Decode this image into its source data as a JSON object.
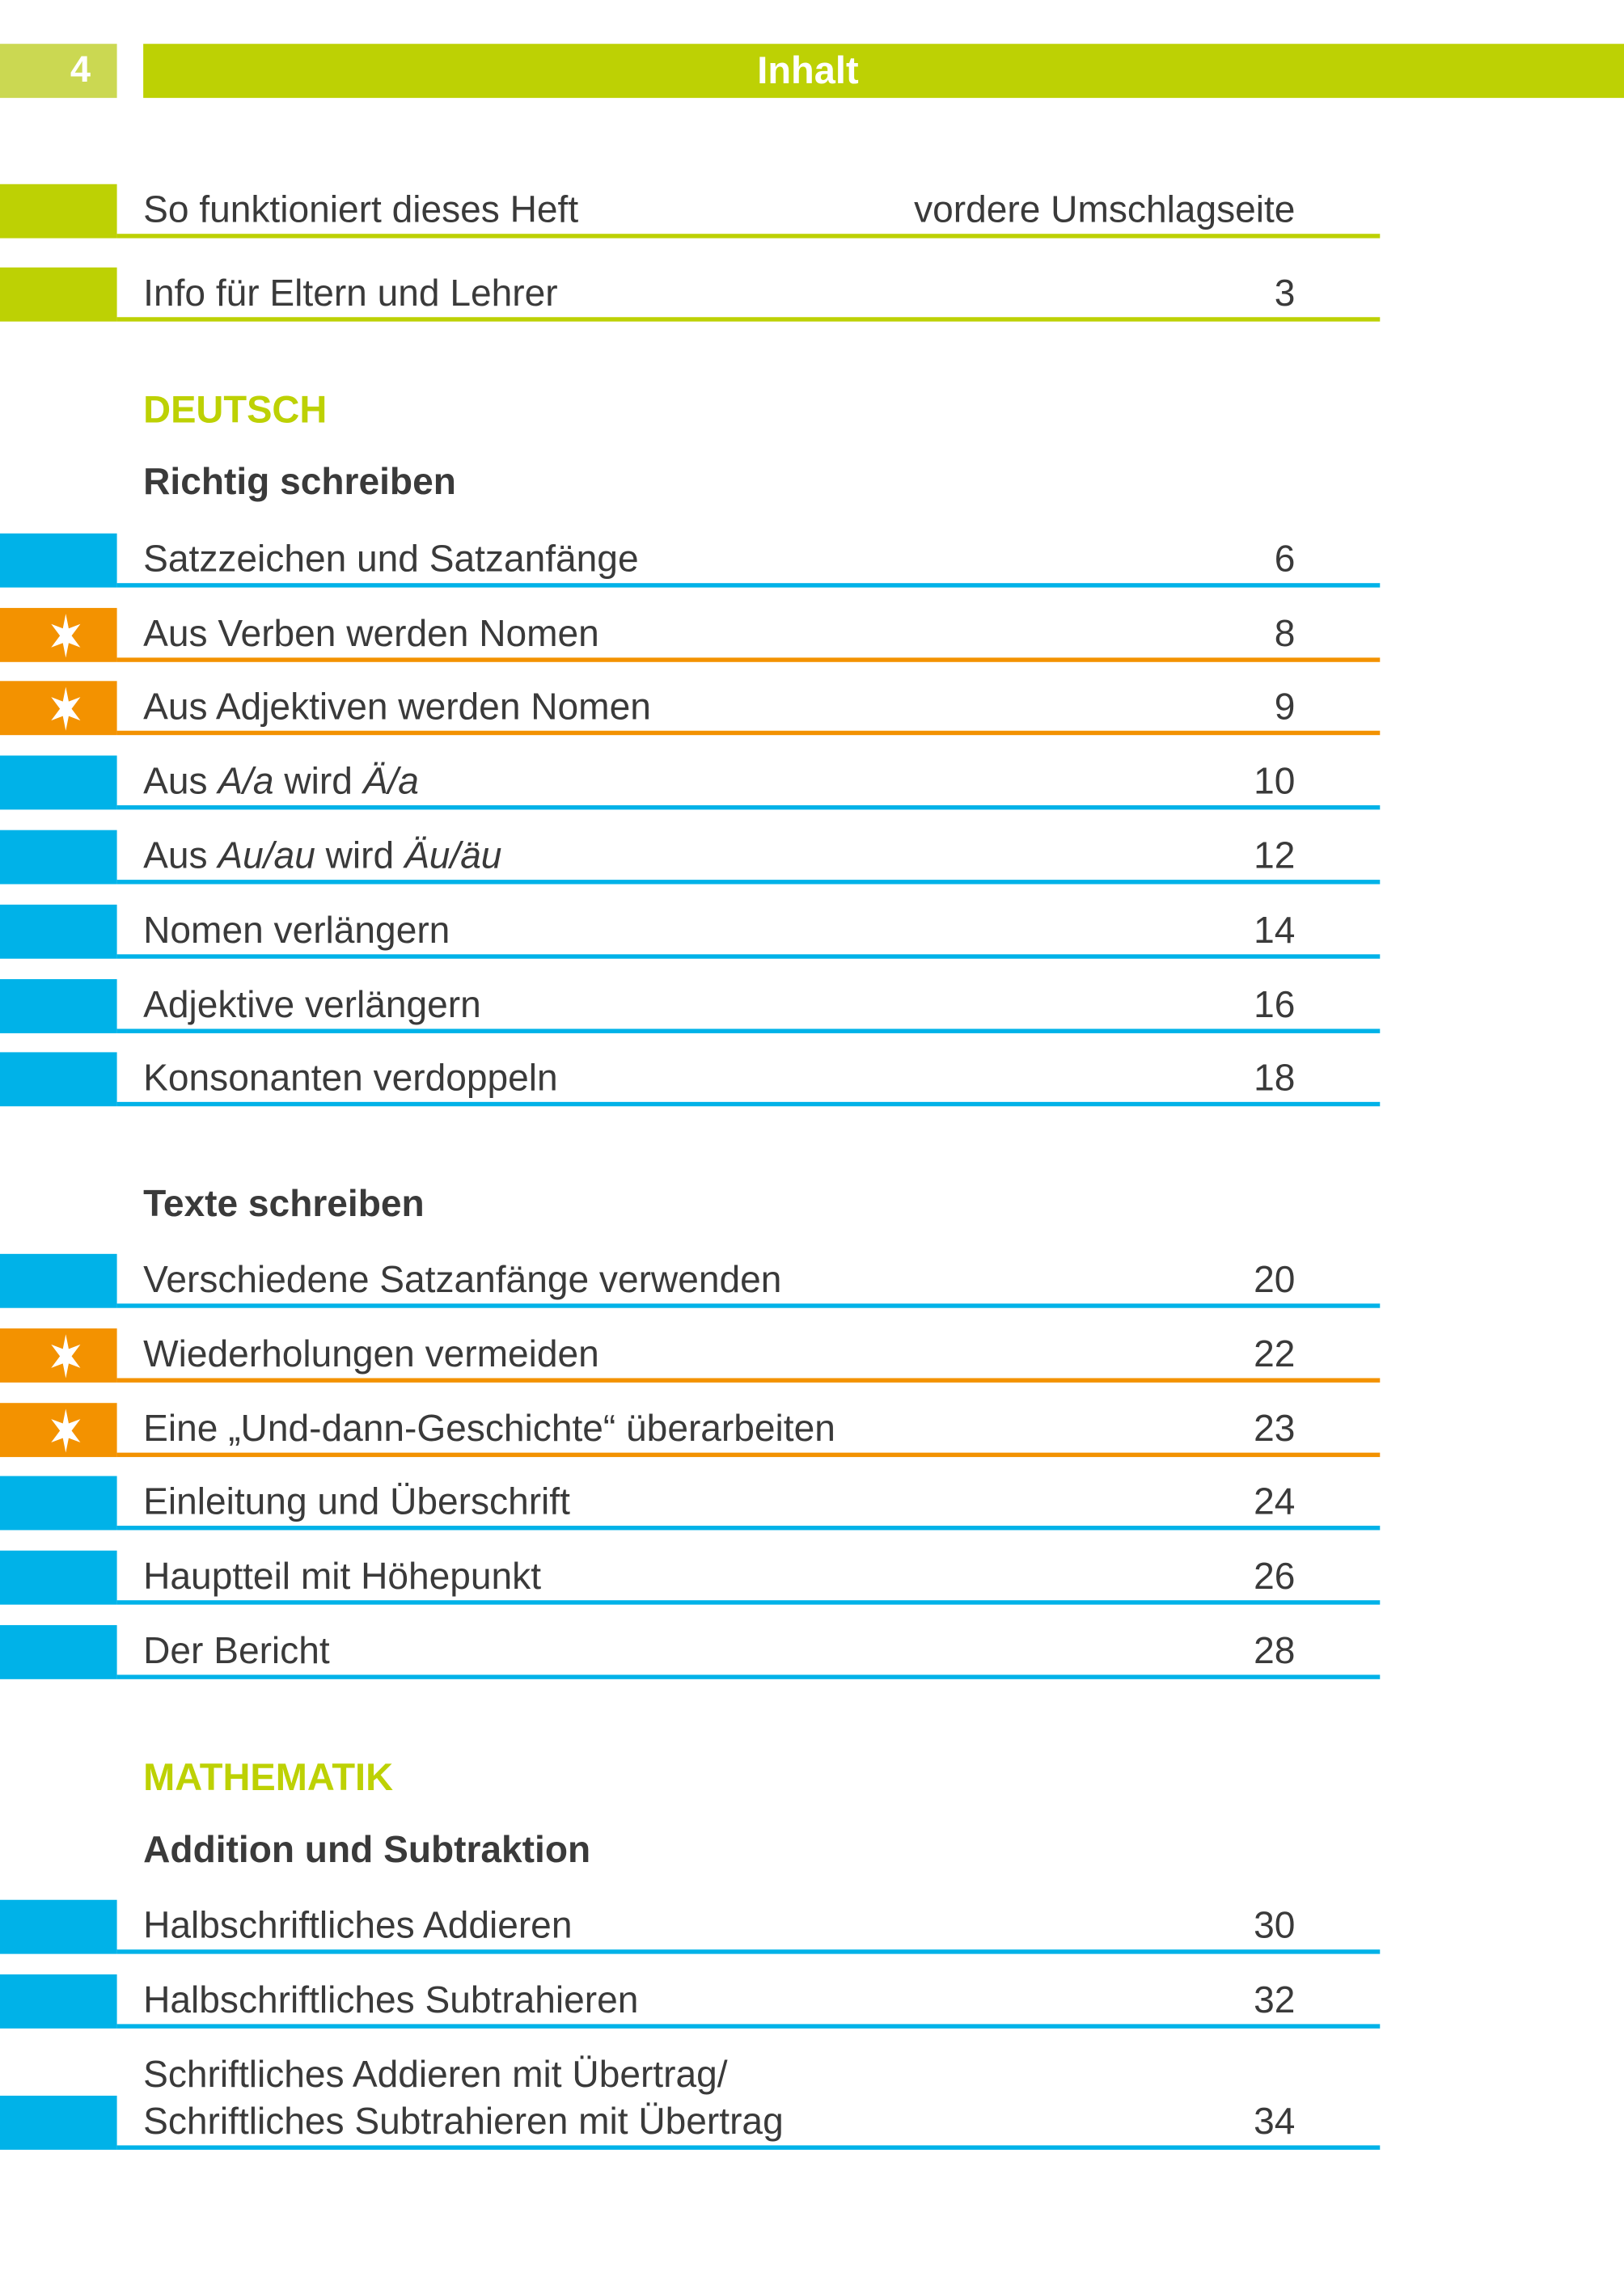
{
  "header": {
    "page_number": "4",
    "title": "Inhalt"
  },
  "colors": {
    "green": "#bdd104",
    "page_box": "#cbd852",
    "blue": "#00b2e8",
    "orange": "#f39200",
    "text": "#3a3a3a",
    "star": "#ffffff"
  },
  "intro": [
    {
      "parts": [
        {
          "text": "So funktioniert dieses Heft"
        }
      ],
      "page": "vordere Umschlagseite",
      "color": "green"
    },
    {
      "parts": [
        {
          "text": "Info für Eltern und Lehrer"
        }
      ],
      "page": "3",
      "color": "green"
    }
  ],
  "subjects": [
    {
      "label": "DEUTSCH",
      "sections": [
        {
          "title": "Richtig schreiben",
          "items": [
            {
              "parts": [
                {
                  "text": "Satzzeichen und Satzanfänge"
                }
              ],
              "page": "6",
              "color": "blue"
            },
            {
              "parts": [
                {
                  "text": "Aus Verben werden Nomen"
                }
              ],
              "page": "8",
              "color": "orange",
              "icon": "star-icon"
            },
            {
              "parts": [
                {
                  "text": "Aus Adjektiven werden Nomen"
                }
              ],
              "page": "9",
              "color": "orange",
              "icon": "star-icon"
            },
            {
              "parts": [
                {
                  "text": "Aus "
                },
                {
                  "text": "A/a",
                  "italic": true
                },
                {
                  "text": " wird "
                },
                {
                  "text": "Ä/a",
                  "italic": true
                }
              ],
              "page": "10",
              "color": "blue"
            },
            {
              "parts": [
                {
                  "text": "Aus "
                },
                {
                  "text": "Au/au",
                  "italic": true
                },
                {
                  "text": " wird "
                },
                {
                  "text": "Äu/äu",
                  "italic": true
                }
              ],
              "page": "12",
              "color": "blue"
            },
            {
              "parts": [
                {
                  "text": "Nomen verlängern"
                }
              ],
              "page": "14",
              "color": "blue"
            },
            {
              "parts": [
                {
                  "text": "Adjektive verlängern"
                }
              ],
              "page": "16",
              "color": "blue"
            },
            {
              "parts": [
                {
                  "text": "Konsonanten verdoppeln"
                }
              ],
              "page": "18",
              "color": "blue"
            }
          ]
        },
        {
          "title": "Texte schreiben",
          "items": [
            {
              "parts": [
                {
                  "text": "Verschiedene Satzanfänge verwenden"
                }
              ],
              "page": "20",
              "color": "blue"
            },
            {
              "parts": [
                {
                  "text": "Wiederholungen vermeiden"
                }
              ],
              "page": "22",
              "color": "orange",
              "icon": "star-icon"
            },
            {
              "parts": [
                {
                  "text": "Eine „Und-dann-Geschichte“ überarbeiten"
                }
              ],
              "page": "23",
              "color": "orange",
              "icon": "star-icon"
            },
            {
              "parts": [
                {
                  "text": "Einleitung und Überschrift"
                }
              ],
              "page": "24",
              "color": "blue"
            },
            {
              "parts": [
                {
                  "text": "Hauptteil mit Höhepunkt"
                }
              ],
              "page": "26",
              "color": "blue"
            },
            {
              "parts": [
                {
                  "text": "Der Bericht"
                }
              ],
              "page": "28",
              "color": "blue"
            }
          ]
        }
      ]
    },
    {
      "label": "MATHEMATIK",
      "sections": [
        {
          "title": "Addition und Subtraktion",
          "items": [
            {
              "parts": [
                {
                  "text": "Halbschriftliches Addieren"
                }
              ],
              "page": "30",
              "color": "blue"
            },
            {
              "parts": [
                {
                  "text": "Halbschriftliches Subtrahieren"
                }
              ],
              "page": "32",
              "color": "blue"
            },
            {
              "parts": [
                {
                  "text": "Schriftliches Subtrahieren mit Übertrag"
                }
              ],
              "line1": "Schriftliches Addieren mit Übertrag/",
              "page": "34",
              "color": "blue"
            }
          ]
        }
      ]
    }
  ]
}
